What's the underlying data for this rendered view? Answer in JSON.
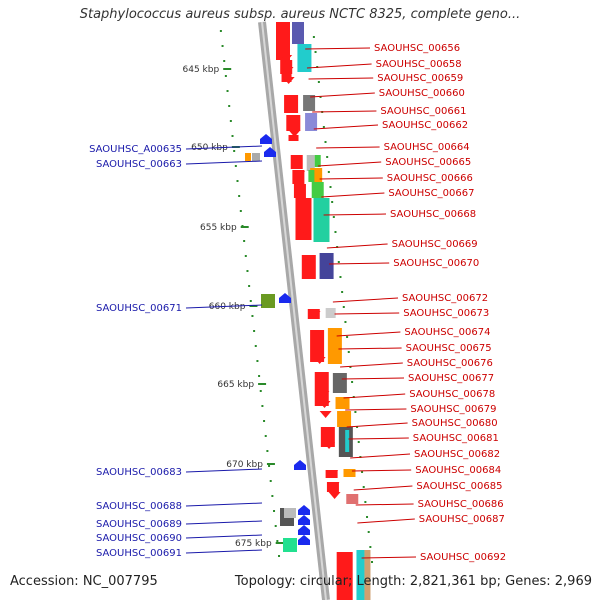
{
  "header": {
    "title": "Staphylococcus aureus subsp. aureus NCTC 8325, complete geno..."
  },
  "footer": {
    "accession": "Accession: NC_007795",
    "summary": "Topology: circular; Length: 2,821,361 bp; Genes: 2,969"
  },
  "colors": {
    "forward_label": "#cc0000",
    "reverse_label": "#1a1aaa",
    "tick": "#2a8a2a",
    "axis": "#9a9a9a"
  },
  "kbp_ticks": [
    {
      "label": "645 kbp"
    },
    {
      "label": "650 kbp"
    },
    {
      "label": "655 kbp"
    },
    {
      "label": "660 kbp"
    },
    {
      "label": "665 kbp"
    },
    {
      "label": "670 kbp"
    },
    {
      "label": "675 kbp"
    }
  ],
  "forward_genes": [
    "SAOUHSC_00656",
    "SAOUHSC_00658",
    "SAOUHSC_00659",
    "SAOUHSC_00660",
    "SAOUHSC_00661",
    "SAOUHSC_00662",
    "SAOUHSC_00664",
    "SAOUHSC_00665",
    "SAOUHSC_00666",
    "SAOUHSC_00667",
    "SAOUHSC_00668",
    "SAOUHSC_00669",
    "SAOUHSC_00670",
    "SAOUHSC_00672",
    "SAOUHSC_00673",
    "SAOUHSC_00674",
    "SAOUHSC_00675",
    "SAOUHSC_00676",
    "SAOUHSC_00677",
    "SAOUHSC_00678",
    "SAOUHSC_00679",
    "SAOUHSC_00680",
    "SAOUHSC_00681",
    "SAOUHSC_00682",
    "SAOUHSC_00684",
    "SAOUHSC_00685",
    "SAOUHSC_00686",
    "SAOUHSC_00687",
    "SAOUHSC_00692"
  ],
  "reverse_genes": [
    "SAOUHSC_A00635",
    "SAOUHSC_00663",
    "SAOUHSC_00671",
    "SAOUHSC_00683",
    "SAOUHSC_00688",
    "SAOUHSC_00689",
    "SAOUHSC_00690",
    "SAOUHSC_00691"
  ]
}
